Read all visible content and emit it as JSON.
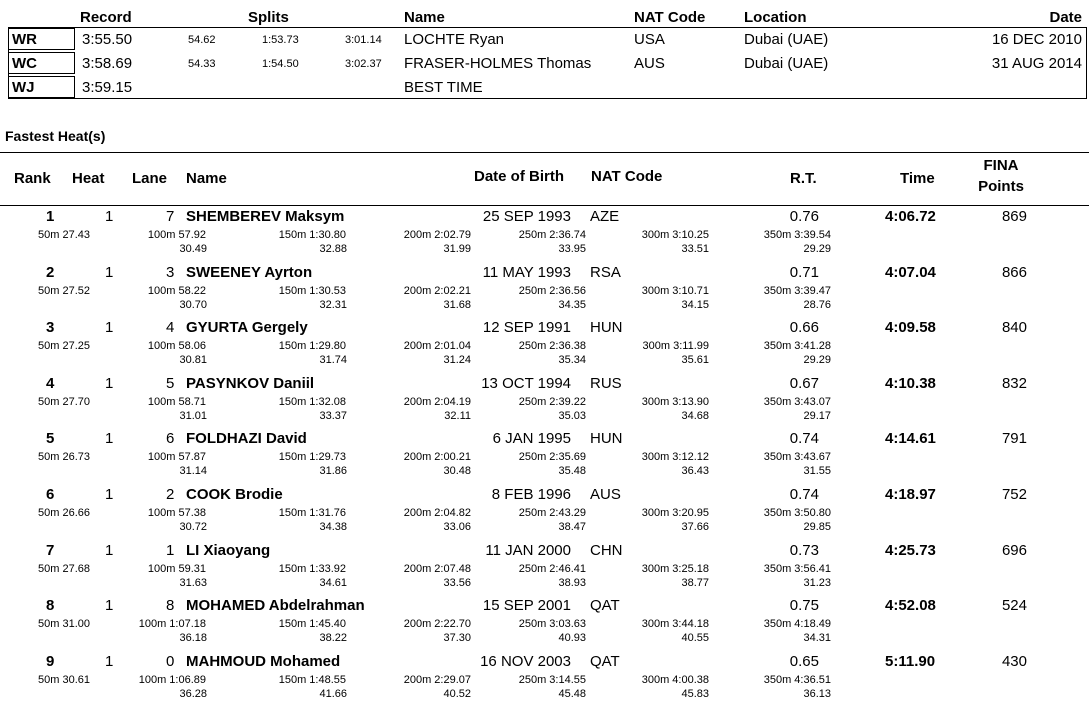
{
  "records_header": {
    "record": "Record",
    "splits": "Splits",
    "name": "Name",
    "nat": "NAT Code",
    "location": "Location",
    "date": "Date"
  },
  "records": [
    {
      "type": "WR",
      "time": "3:55.50",
      "s1": "54.62",
      "s2": "1:53.73",
      "s3": "3:01.14",
      "name": "LOCHTE Ryan",
      "nat": "USA",
      "location": "Dubai (UAE)",
      "date": "16 DEC 2010"
    },
    {
      "type": "WC",
      "time": "3:58.69",
      "s1": "54.33",
      "s2": "1:54.50",
      "s3": "3:02.37",
      "name": "FRASER-HOLMES Thomas",
      "nat": "AUS",
      "location": "Dubai (UAE)",
      "date": "31 AUG 2014"
    },
    {
      "type": "WJ",
      "time": "3:59.15",
      "s1": "",
      "s2": "",
      "s3": "",
      "name": "BEST TIME",
      "nat": "",
      "location": "",
      "date": ""
    }
  ],
  "section_title": "Fastest Heat(s)",
  "results_header": {
    "rank": "Rank",
    "heat": "Heat",
    "lane": "Lane",
    "name": "Name",
    "dob": "Date of Birth",
    "nat": "NAT Code",
    "rt": "R.T.",
    "time": "Time",
    "fina1": "FINA",
    "fina2": "Points"
  },
  "results": [
    {
      "rank": "1",
      "heat": "1",
      "lane": "7",
      "name": "SHEMBEREV Maksym",
      "dob": "25 SEP 1993",
      "nat": "AZE",
      "rt": "0.76",
      "time": "4:06.72",
      "points": "869",
      "s50": "50m 27.43",
      "s100": "100m 57.92",
      "s150": "150m 1:30.80",
      "s200": "200m 2:02.79",
      "s250": "250m 2:36.74",
      "s300": "300m 3:10.25",
      "s350": "350m 3:39.54",
      "d100": "30.49",
      "d150": "32.88",
      "d200": "31.99",
      "d250": "33.95",
      "d300": "33.51",
      "d350": "29.29"
    },
    {
      "rank": "2",
      "heat": "1",
      "lane": "3",
      "name": "SWEENEY Ayrton",
      "dob": "11 MAY 1993",
      "nat": "RSA",
      "rt": "0.71",
      "time": "4:07.04",
      "points": "866",
      "s50": "50m 27.52",
      "s100": "100m 58.22",
      "s150": "150m 1:30.53",
      "s200": "200m 2:02.21",
      "s250": "250m 2:36.56",
      "s300": "300m 3:10.71",
      "s350": "350m 3:39.47",
      "d100": "30.70",
      "d150": "32.31",
      "d200": "31.68",
      "d250": "34.35",
      "d300": "34.15",
      "d350": "28.76"
    },
    {
      "rank": "3",
      "heat": "1",
      "lane": "4",
      "name": "GYURTA Gergely",
      "dob": "12 SEP 1991",
      "nat": "HUN",
      "rt": "0.66",
      "time": "4:09.58",
      "points": "840",
      "s50": "50m 27.25",
      "s100": "100m 58.06",
      "s150": "150m 1:29.80",
      "s200": "200m 2:01.04",
      "s250": "250m 2:36.38",
      "s300": "300m 3:11.99",
      "s350": "350m 3:41.28",
      "d100": "30.81",
      "d150": "31.74",
      "d200": "31.24",
      "d250": "35.34",
      "d300": "35.61",
      "d350": "29.29"
    },
    {
      "rank": "4",
      "heat": "1",
      "lane": "5",
      "name": "PASYNKOV Daniil",
      "dob": "13 OCT 1994",
      "nat": "RUS",
      "rt": "0.67",
      "time": "4:10.38",
      "points": "832",
      "s50": "50m 27.70",
      "s100": "100m 58.71",
      "s150": "150m 1:32.08",
      "s200": "200m 2:04.19",
      "s250": "250m 2:39.22",
      "s300": "300m 3:13.90",
      "s350": "350m 3:43.07",
      "d100": "31.01",
      "d150": "33.37",
      "d200": "32.11",
      "d250": "35.03",
      "d300": "34.68",
      "d350": "29.17"
    },
    {
      "rank": "5",
      "heat": "1",
      "lane": "6",
      "name": "FOLDHAZI David",
      "dob": "6 JAN 1995",
      "nat": "HUN",
      "rt": "0.74",
      "time": "4:14.61",
      "points": "791",
      "s50": "50m 26.73",
      "s100": "100m 57.87",
      "s150": "150m 1:29.73",
      "s200": "200m 2:00.21",
      "s250": "250m 2:35.69",
      "s300": "300m 3:12.12",
      "s350": "350m 3:43.67",
      "d100": "31.14",
      "d150": "31.86",
      "d200": "30.48",
      "d250": "35.48",
      "d300": "36.43",
      "d350": "31.55"
    },
    {
      "rank": "6",
      "heat": "1",
      "lane": "2",
      "name": "COOK Brodie",
      "dob": "8 FEB 1996",
      "nat": "AUS",
      "rt": "0.74",
      "time": "4:18.97",
      "points": "752",
      "s50": "50m 26.66",
      "s100": "100m 57.38",
      "s150": "150m 1:31.76",
      "s200": "200m 2:04.82",
      "s250": "250m 2:43.29",
      "s300": "300m 3:20.95",
      "s350": "350m 3:50.80",
      "d100": "30.72",
      "d150": "34.38",
      "d200": "33.06",
      "d250": "38.47",
      "d300": "37.66",
      "d350": "29.85"
    },
    {
      "rank": "7",
      "heat": "1",
      "lane": "1",
      "name": "LI Xiaoyang",
      "dob": "11 JAN 2000",
      "nat": "CHN",
      "rt": "0.73",
      "time": "4:25.73",
      "points": "696",
      "s50": "50m 27.68",
      "s100": "100m 59.31",
      "s150": "150m 1:33.92",
      "s200": "200m 2:07.48",
      "s250": "250m 2:46.41",
      "s300": "300m 3:25.18",
      "s350": "350m 3:56.41",
      "d100": "31.63",
      "d150": "34.61",
      "d200": "33.56",
      "d250": "38.93",
      "d300": "38.77",
      "d350": "31.23"
    },
    {
      "rank": "8",
      "heat": "1",
      "lane": "8",
      "name": "MOHAMED Abdelrahman",
      "dob": "15 SEP 2001",
      "nat": "QAT",
      "rt": "0.75",
      "time": "4:52.08",
      "points": "524",
      "s50": "50m 31.00",
      "s100": "100m 1:07.18",
      "s150": "150m 1:45.40",
      "s200": "200m 2:22.70",
      "s250": "250m 3:03.63",
      "s300": "300m 3:44.18",
      "s350": "350m 4:18.49",
      "d100": "36.18",
      "d150": "38.22",
      "d200": "37.30",
      "d250": "40.93",
      "d300": "40.55",
      "d350": "34.31"
    },
    {
      "rank": "9",
      "heat": "1",
      "lane": "0",
      "name": "MAHMOUD Mohamed",
      "dob": "16 NOV 2003",
      "nat": "QAT",
      "rt": "0.65",
      "time": "5:11.90",
      "points": "430",
      "s50": "50m 30.61",
      "s100": "100m 1:06.89",
      "s150": "150m 1:48.55",
      "s200": "200m 2:29.07",
      "s250": "250m 3:14.55",
      "s300": "300m 4:00.38",
      "s350": "350m 4:36.51",
      "d100": "36.28",
      "d150": "41.66",
      "d200": "40.52",
      "d250": "45.48",
      "d300": "45.83",
      "d350": "36.13"
    }
  ]
}
